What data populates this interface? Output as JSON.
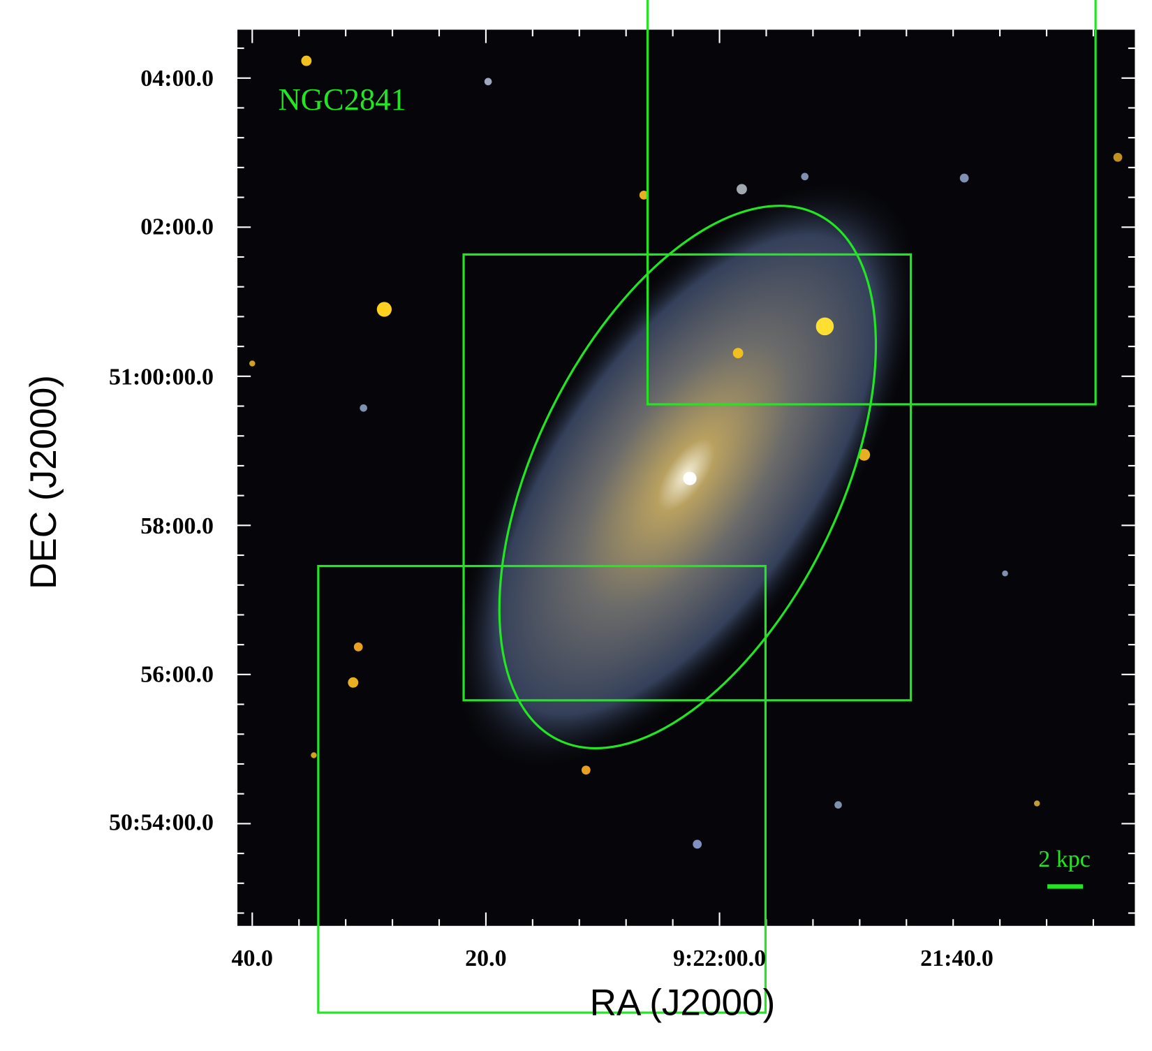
{
  "figure": {
    "object_label": "NGC2841",
    "scale_bar_label": "2 kpc",
    "x_axis": {
      "label": "RA (J2000)",
      "tick_labels": [
        "40.0",
        "20.0",
        "9:22:00.0",
        "21:40.0"
      ]
    },
    "y_axis": {
      "label": "DEC (J2000)",
      "tick_labels": [
        "04:00.0",
        "02:00.0",
        "51:00:00.0",
        "58:00.0",
        "56:00.0",
        "50:54:00.0"
      ]
    }
  }
}
